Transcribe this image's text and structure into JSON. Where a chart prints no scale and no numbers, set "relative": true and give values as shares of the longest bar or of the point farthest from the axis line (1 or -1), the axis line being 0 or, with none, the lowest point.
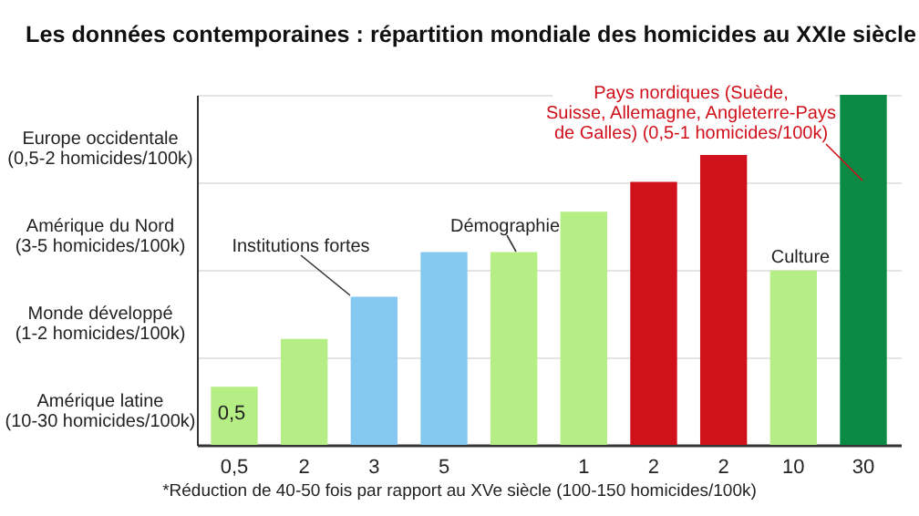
{
  "chart_data": {
    "type": "bar",
    "relative": true,
    "title": "Les données contemporaines : répartition mondiale des homicides au XXIe siècle",
    "categories": [
      "0,5",
      "2",
      "3",
      "5",
      null,
      "1",
      "2",
      "2",
      "10",
      "30"
    ],
    "values": [
      0.166,
      0.303,
      0.423,
      0.551,
      0.551,
      0.666,
      0.751,
      0.828,
      0.498,
      1
    ],
    "colors": [
      "#b5ee84",
      "#b5ee84",
      "#85c8f0",
      "#85c8f0",
      "#b5ee84",
      "#b5ee84",
      "#d0101a",
      "#d0101a",
      "#b5ee84",
      "#0a8a45"
    ],
    "grid": "y",
    "annotations": [
      "Europe occidentale\n(0,5-2 homicides/100k)",
      "Amérique du Nord\n(3-5 homicides/100k)",
      "Monde développé\n(1-2 homicides/100k)",
      "Amérique latine\n(10-30 homicides/100k)",
      "Institutions fortes",
      "Démographie",
      "Culture",
      "Pays nordiques (Suède,\nSuisse, Allemagne, Angleterre-Pays\nde Galles) (0,5-1 homicides/100k)",
      "*Réduction de 40-50 fois par rapport au XVe siècle (100-150 homicides/100k)",
      "0,5"
    ]
  }
}
